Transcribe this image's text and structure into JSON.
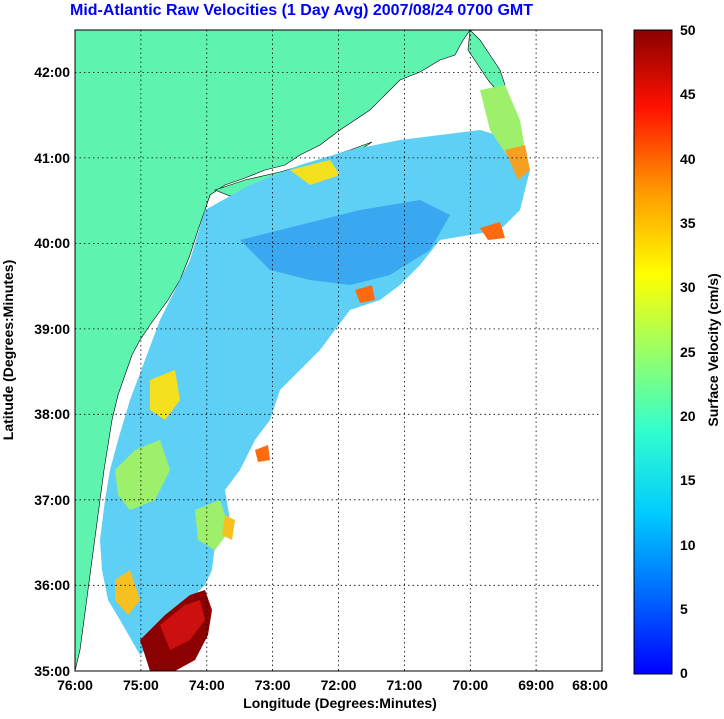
{
  "title": "Mid-Atlantic Raw Velocities (1 Day Avg) 2007/08/24 0700 GMT",
  "x_axis": {
    "label": "Longitude (Degrees:Minutes)",
    "ticks": [
      "76:00",
      "75:00",
      "74:00",
      "73:00",
      "72:00",
      "71:00",
      "70:00",
      "69:00",
      "68:00"
    ]
  },
  "y_axis": {
    "label": "Latitude (Degrees:Minutes)",
    "ticks": [
      "42:00",
      "41:00",
      "40:00",
      "39:00",
      "38:00",
      "37:00",
      "36:00",
      "35:00"
    ]
  },
  "colorbar": {
    "label": "Surface Velocity (cm/s)",
    "ticks": [
      "50",
      "45",
      "40",
      "35",
      "30",
      "25",
      "20",
      "15",
      "10",
      "5",
      "0"
    ],
    "min": 0,
    "max": 50
  },
  "colors": {
    "land": "#5ef4b0",
    "title": "#0000ff",
    "grid": "#000000"
  }
}
